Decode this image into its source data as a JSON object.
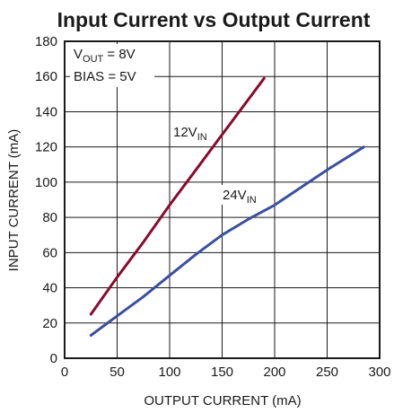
{
  "chart_data": {
    "type": "line",
    "title": "Input Current vs Output Current",
    "xlabel": "OUTPUT CURRENT (mA)",
    "ylabel": "INPUT CURRENT (mA)",
    "xlim": [
      0,
      300
    ],
    "ylim": [
      0,
      180
    ],
    "x_ticks": [
      0,
      50,
      100,
      150,
      200,
      250,
      300
    ],
    "y_ticks": [
      0,
      20,
      40,
      60,
      80,
      100,
      120,
      140,
      160,
      180
    ],
    "grid": true,
    "conditions": {
      "line1": {
        "main": "V",
        "sub": "OUT",
        "rest": " = 8V"
      },
      "line2": "BIAS = 5V"
    },
    "series": [
      {
        "label_main": "12V",
        "label_sub": "IN",
        "color": "#8b0a2e",
        "x": [
          25,
          50,
          75,
          100,
          125,
          150,
          175,
          190
        ],
        "y": [
          25,
          46,
          66,
          87,
          107,
          127,
          147,
          159
        ]
      },
      {
        "label_main": "24V",
        "label_sub": "IN",
        "color": "#3a50a0",
        "x": [
          25,
          50,
          75,
          100,
          125,
          150,
          175,
          200,
          225,
          250,
          285
        ],
        "y": [
          13,
          24,
          35,
          47,
          59,
          70,
          79,
          87,
          97,
          107,
          120
        ]
      }
    ],
    "colors": {
      "frame": "#1a1a1a",
      "grid": "#1a1a1a",
      "text": "#1a1a1a"
    }
  }
}
